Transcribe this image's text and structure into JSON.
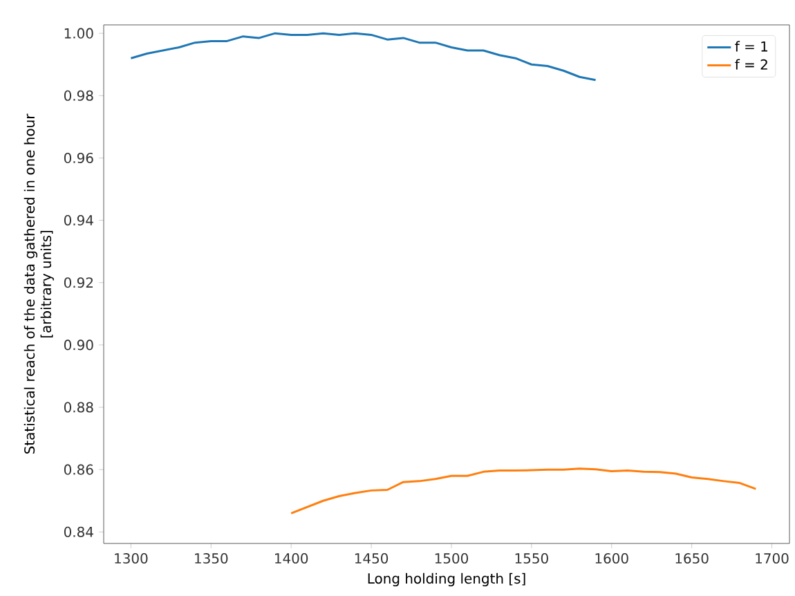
{
  "chart_data": {
    "type": "line",
    "xlabel": "Long holding length [s]",
    "ylabel": "Statistical reach of the data gathered in one hour\n[arbitrary units]",
    "xlim": [
      1283,
      1711
    ],
    "ylim": [
      0.8363,
      1.0027
    ],
    "xticks": [
      1300,
      1350,
      1400,
      1450,
      1500,
      1550,
      1600,
      1650,
      1700
    ],
    "yticks": [
      {
        "value": 0.84,
        "label": "0.84"
      },
      {
        "value": 0.86,
        "label": "0.86"
      },
      {
        "value": 0.88,
        "label": "0.88"
      },
      {
        "value": 0.9,
        "label": "0.90"
      },
      {
        "value": 0.92,
        "label": "0.92"
      },
      {
        "value": 0.94,
        "label": "0.94"
      },
      {
        "value": 0.96,
        "label": "0.96"
      },
      {
        "value": 0.98,
        "label": "0.98"
      },
      {
        "value": 1.0,
        "label": "1.00"
      }
    ],
    "grid": false,
    "legend": "top right",
    "series": [
      {
        "name": "f = 1",
        "color": "#1f77b4",
        "x": [
          1300,
          1310,
          1320,
          1330,
          1340,
          1350,
          1360,
          1370,
          1380,
          1390,
          1400,
          1410,
          1420,
          1430,
          1440,
          1450,
          1460,
          1470,
          1480,
          1490,
          1500,
          1510,
          1520,
          1530,
          1540,
          1550,
          1560,
          1570,
          1580,
          1590
        ],
        "values": [
          0.992,
          0.9935,
          0.9945,
          0.9955,
          0.997,
          0.9975,
          0.9975,
          0.999,
          0.9985,
          1.0,
          0.9995,
          0.9995,
          1.0,
          0.9995,
          1.0,
          0.9995,
          0.998,
          0.9985,
          0.997,
          0.997,
          0.9955,
          0.9945,
          0.9945,
          0.993,
          0.992,
          0.99,
          0.9895,
          0.988,
          0.986,
          0.985
        ]
      },
      {
        "name": "f = 2",
        "color": "#ff7f0e",
        "x": [
          1400,
          1410,
          1420,
          1430,
          1440,
          1450,
          1460,
          1470,
          1480,
          1490,
          1500,
          1510,
          1520,
          1530,
          1540,
          1550,
          1560,
          1570,
          1580,
          1590,
          1600,
          1610,
          1620,
          1630,
          1640,
          1650,
          1660,
          1670,
          1680,
          1690
        ],
        "values": [
          0.846,
          0.848,
          0.85,
          0.8515,
          0.8525,
          0.8533,
          0.8535,
          0.856,
          0.8563,
          0.857,
          0.858,
          0.858,
          0.8593,
          0.8597,
          0.8597,
          0.8598,
          0.86,
          0.86,
          0.8603,
          0.8601,
          0.8595,
          0.8597,
          0.8593,
          0.8592,
          0.8587,
          0.8575,
          0.857,
          0.8563,
          0.8557,
          0.8538
        ]
      }
    ]
  }
}
